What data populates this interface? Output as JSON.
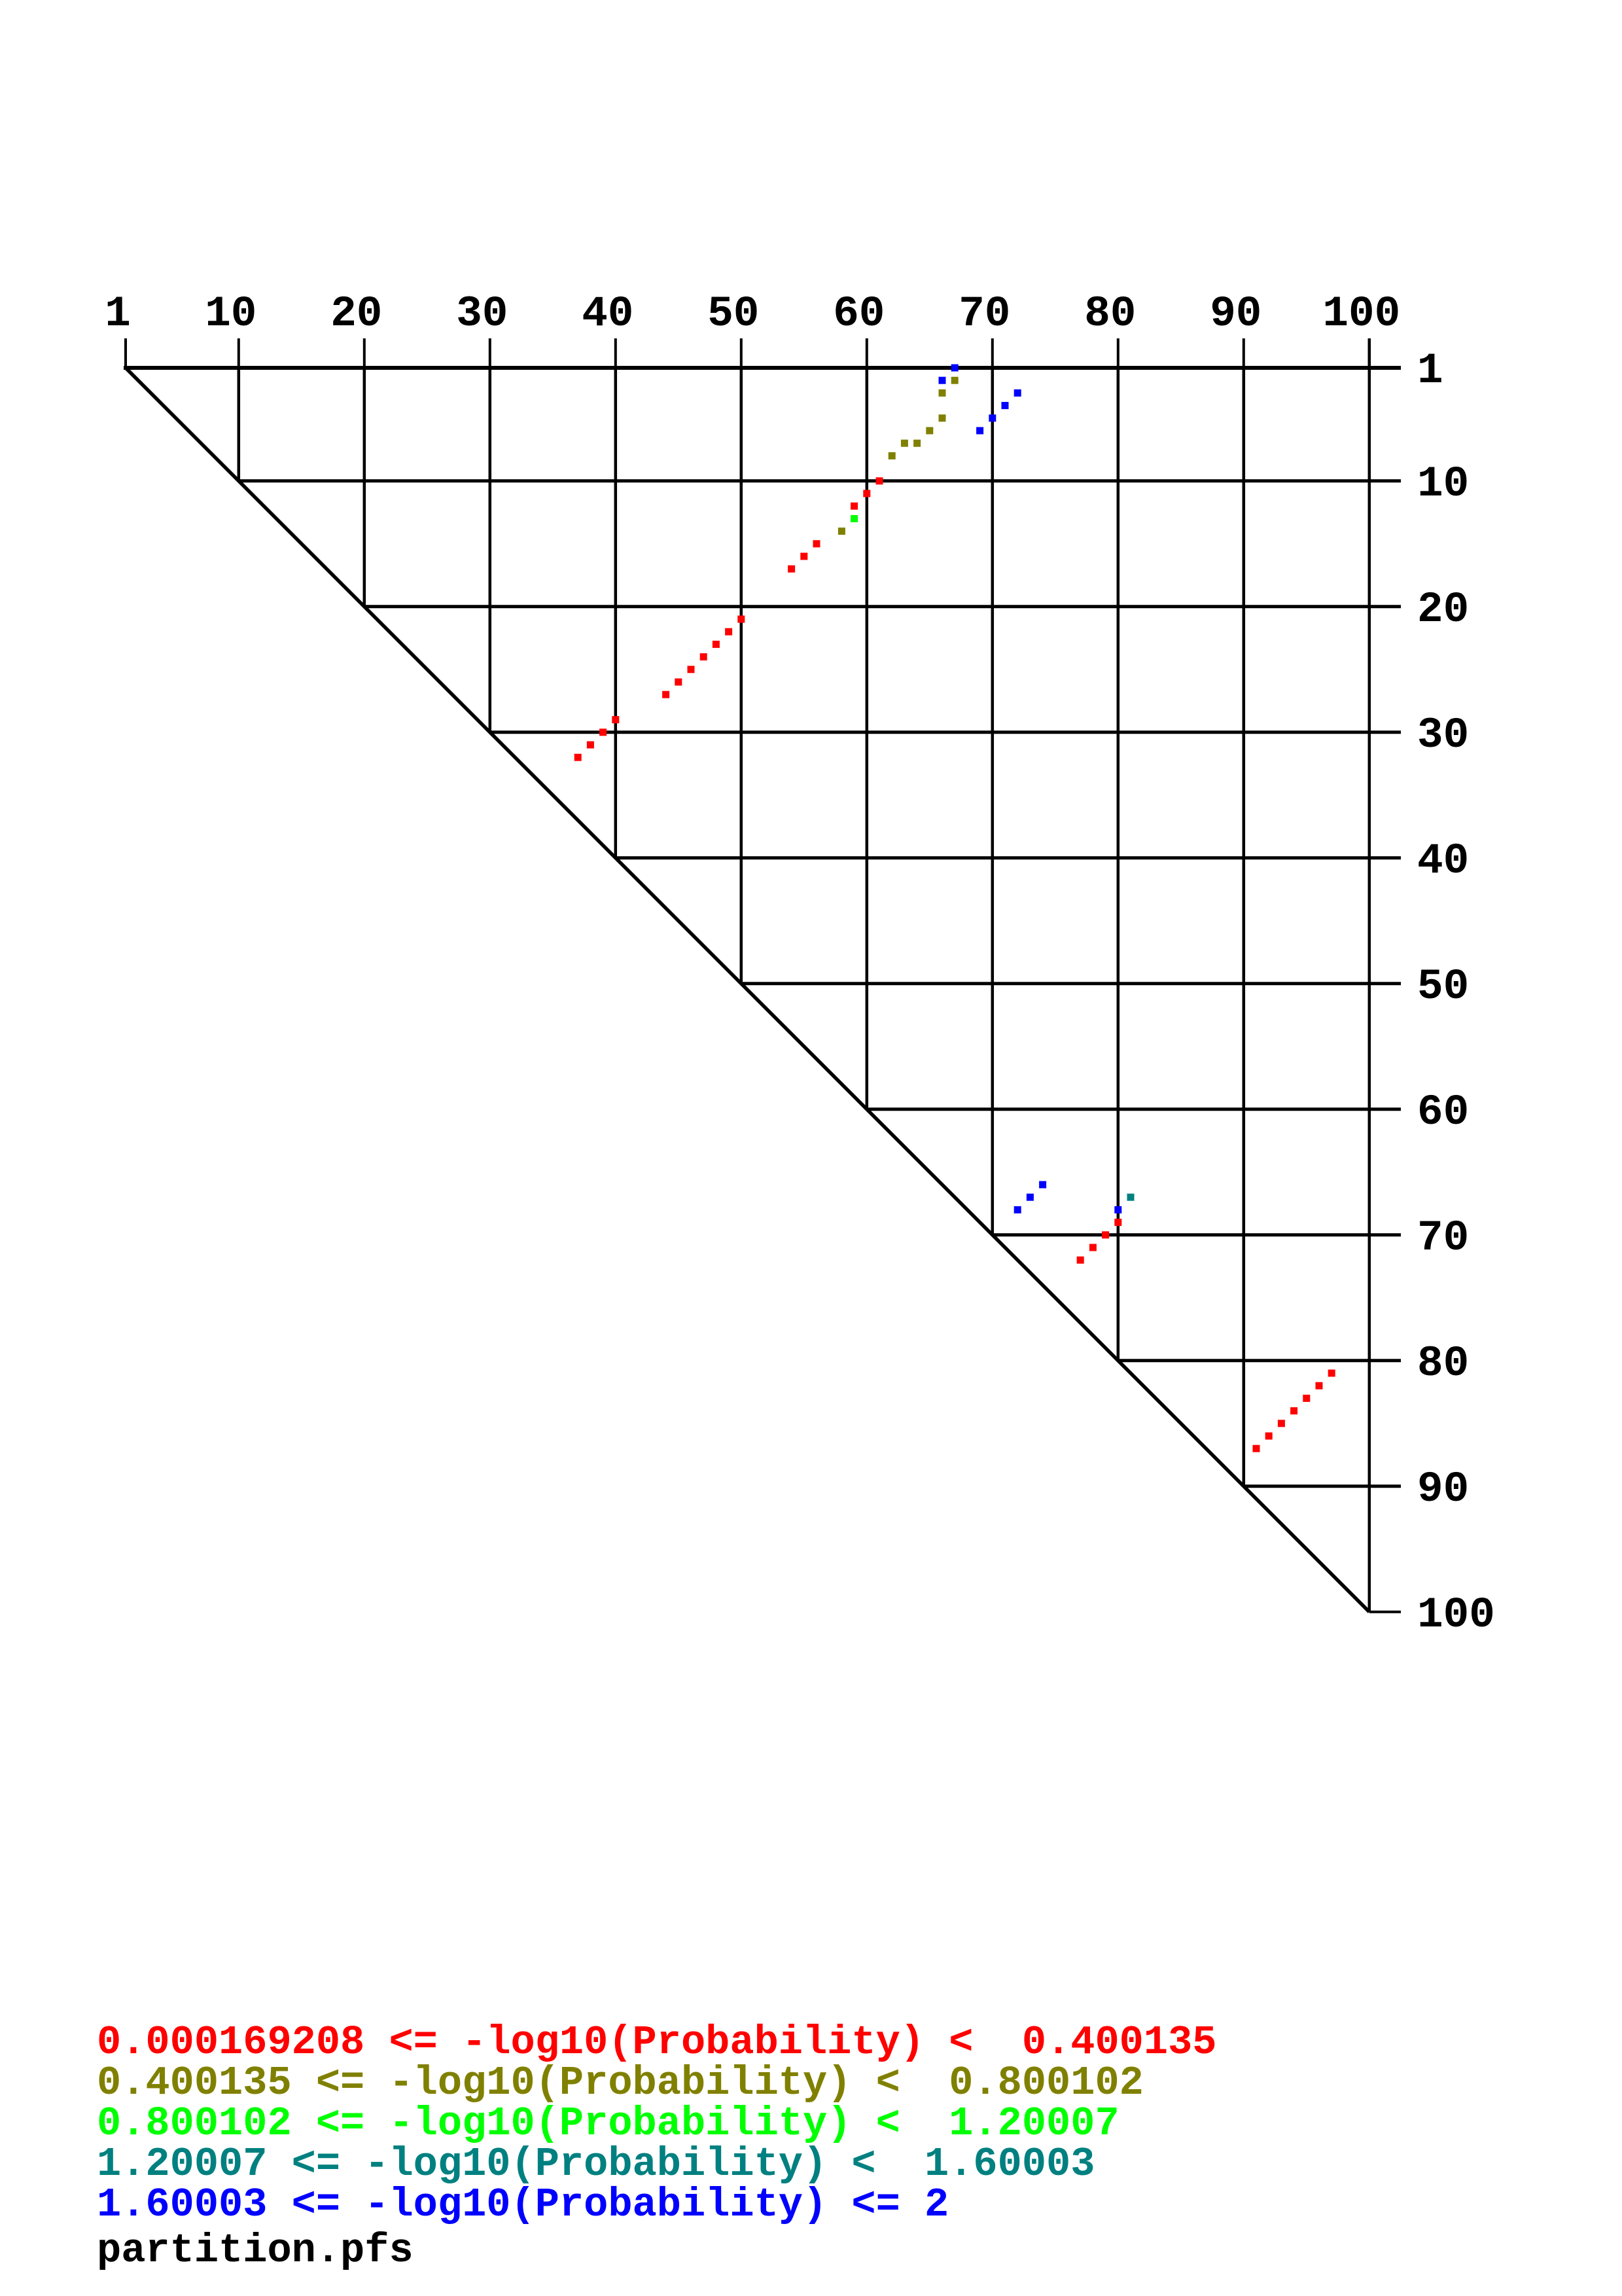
{
  "palette": {
    "red": "#ff0000",
    "olive": "#808000",
    "green": "#00ff00",
    "teal": "#008080",
    "blue": "#0000ff",
    "black": "#000000"
  },
  "axes": {
    "tick_values": [
      1,
      10,
      20,
      30,
      40,
      50,
      60,
      70,
      80,
      90,
      100
    ],
    "top_labels": [
      "1",
      "10",
      "20",
      "30",
      "40",
      "50",
      "60",
      "70",
      "80",
      "90",
      "100"
    ],
    "right_labels": [
      "1",
      "10",
      "20",
      "30",
      "40",
      "50",
      "60",
      "70",
      "80",
      "90",
      "100"
    ]
  },
  "chart_data": {
    "type": "scatter",
    "subtype": "base-pair-probability-dot-plot",
    "title": "",
    "x_axis": {
      "position": "top",
      "range": [
        1,
        100
      ],
      "ticks": [
        1,
        10,
        20,
        30,
        40,
        50,
        60,
        70,
        80,
        90,
        100
      ]
    },
    "y_axis": {
      "position": "right",
      "range": [
        1,
        100
      ],
      "direction": "downward",
      "ticks": [
        1,
        10,
        20,
        30,
        40,
        50,
        60,
        70,
        80,
        90,
        100
      ]
    },
    "grid": true,
    "diagonal_line": true,
    "dot_size_px": 11,
    "series": [
      {
        "name": "0.000169208 <= -log10(Probability) <  0.400135",
        "color": "red",
        "points_col_row": [
          [
            61,
            10
          ],
          [
            60,
            11
          ],
          [
            59,
            12
          ],
          [
            56,
            15
          ],
          [
            55,
            16
          ],
          [
            54,
            17
          ],
          [
            50,
            21
          ],
          [
            49,
            22
          ],
          [
            48,
            23
          ],
          [
            47,
            24
          ],
          [
            46,
            25
          ],
          [
            45,
            26
          ],
          [
            44,
            27
          ],
          [
            40,
            29
          ],
          [
            39,
            30
          ],
          [
            38,
            31
          ],
          [
            37,
            32
          ],
          [
            80,
            69
          ],
          [
            79,
            70
          ],
          [
            78,
            71
          ],
          [
            77,
            72
          ],
          [
            97,
            81
          ],
          [
            96,
            82
          ],
          [
            95,
            83
          ],
          [
            94,
            84
          ],
          [
            93,
            85
          ],
          [
            92,
            86
          ],
          [
            91,
            87
          ]
        ]
      },
      {
        "name": "0.400135 <= -log10(Probability) <  0.800102",
        "color": "olive",
        "points_col_row": [
          [
            67,
            2
          ],
          [
            66,
            3
          ],
          [
            66,
            5
          ],
          [
            65,
            6
          ],
          [
            64,
            7
          ],
          [
            63,
            7
          ],
          [
            62,
            8
          ],
          [
            58,
            14
          ]
        ]
      },
      {
        "name": "0.800102 <= -log10(Probability) <  1.20007",
        "color": "green",
        "points_col_row": [
          [
            59,
            13
          ]
        ]
      },
      {
        "name": "1.20007 <= -log10(Probability) <  1.60003",
        "color": "teal",
        "points_col_row": [
          [
            81,
            67
          ]
        ]
      },
      {
        "name": "1.60003 <= -log10(Probability) <= 2",
        "color": "blue",
        "points_col_row": [
          [
            67,
            1
          ],
          [
            66,
            2
          ],
          [
            72,
            3
          ],
          [
            71,
            4
          ],
          [
            70,
            5
          ],
          [
            69,
            6
          ],
          [
            74,
            66
          ],
          [
            73,
            67
          ],
          [
            72,
            68
          ],
          [
            80,
            68
          ]
        ]
      }
    ]
  },
  "legend": {
    "lines": [
      {
        "text": "0.000169208 <= -log10(Probability) <  0.400135",
        "color": "red"
      },
      {
        "text": "0.400135 <= -log10(Probability) <  0.800102",
        "color": "olive"
      },
      {
        "text": "0.800102 <= -log10(Probability) <  1.20007",
        "color": "green"
      },
      {
        "text": "1.20007 <= -log10(Probability) <  1.60003",
        "color": "teal"
      },
      {
        "text": "1.60003 <= -log10(Probability) <= 2",
        "color": "blue"
      }
    ]
  },
  "footer": {
    "filename": "partition.pfs"
  }
}
